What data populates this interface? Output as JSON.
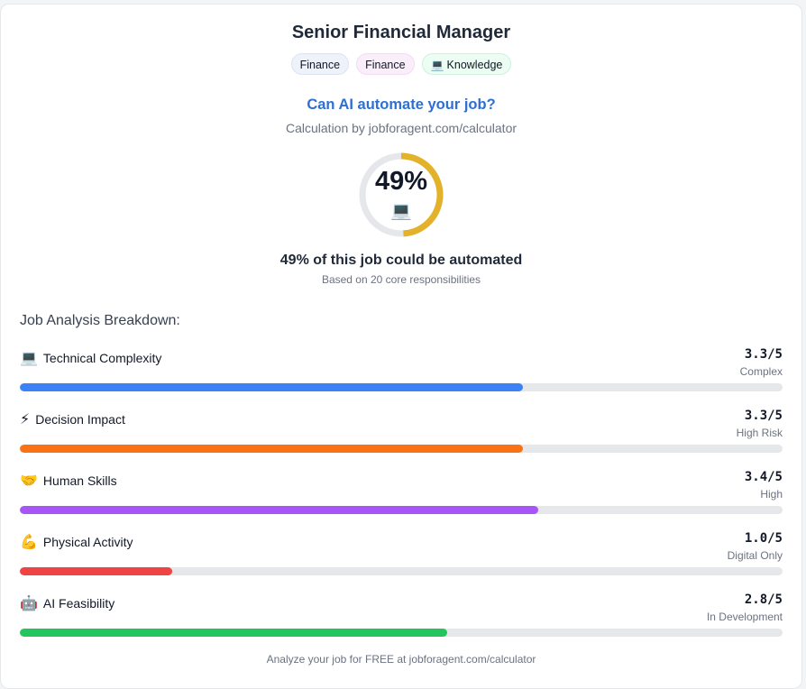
{
  "title": "Senior Financial Manager",
  "tags": [
    {
      "label": "Finance",
      "icon": ""
    },
    {
      "label": "Finance",
      "icon": ""
    },
    {
      "label": "Knowledge",
      "icon": "💻"
    }
  ],
  "question": "Can AI automate your job?",
  "calculation_by": "Calculation by jobforagent.com/calculator",
  "gauge": {
    "percent_text": "49%",
    "percent_value": 49,
    "icon": "💻",
    "icon_name": "laptop-icon",
    "ring_color": "#e3b22a",
    "track_color": "#e5e7eb"
  },
  "automation_text": "49% of this job could be automated",
  "based_on": "Based on 20 core responsibilities",
  "section_heading": "Job Analysis Breakdown:",
  "metrics": [
    {
      "emoji": "💻",
      "icon_name": "laptop-icon",
      "name": "Technical Complexity",
      "score": "3.3/5",
      "value": 3.3,
      "max": 5,
      "level": "Complex",
      "color": "#3b82f6"
    },
    {
      "emoji": "⚡",
      "icon_name": "lightning-icon",
      "name": "Decision Impact",
      "score": "3.3/5",
      "value": 3.3,
      "max": 5,
      "level": "High Risk",
      "color": "#f97316"
    },
    {
      "emoji": "🤝",
      "icon_name": "handshake-icon",
      "name": "Human Skills",
      "score": "3.4/5",
      "value": 3.4,
      "max": 5,
      "level": "High",
      "color": "#a855f7"
    },
    {
      "emoji": "💪",
      "icon_name": "flexed-biceps-icon",
      "name": "Physical Activity",
      "score": "1.0/5",
      "value": 1.0,
      "max": 5,
      "level": "Digital Only",
      "color": "#ef4444"
    },
    {
      "emoji": "🤖",
      "icon_name": "robot-icon",
      "name": "AI Feasibility",
      "score": "2.8/5",
      "value": 2.8,
      "max": 5,
      "level": "In Development",
      "color": "#22c55e"
    }
  ],
  "footer": "Analyze your job for FREE at jobforagent.com/calculator"
}
